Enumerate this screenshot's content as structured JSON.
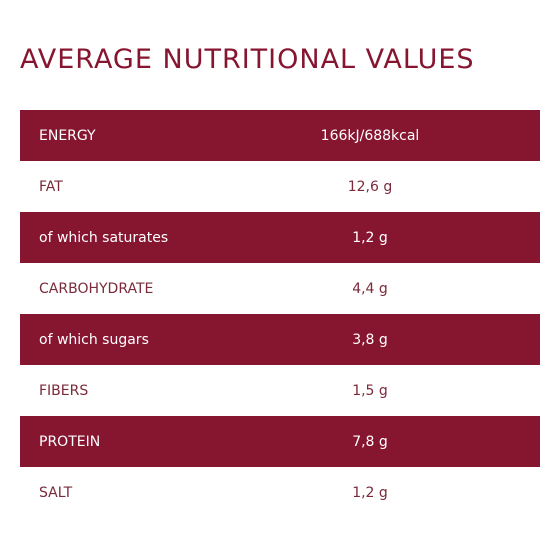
{
  "title": "AVERAGE NUTRITIONAL VALUES",
  "rows": [
    {
      "label": "ENERGY",
      "value": "166kJ/688kcal"
    },
    {
      "label": "FAT",
      "value": "12,6 g"
    },
    {
      "label": "of which saturates",
      "value": "1,2 g"
    },
    {
      "label": "CARBOHYDRATE",
      "value": "4,4 g"
    },
    {
      "label": "of which sugars",
      "value": "3,8 g"
    },
    {
      "label": "FIBERS",
      "value": "1,5 g"
    },
    {
      "label": "PROTEIN",
      "value": "7,8 g"
    },
    {
      "label": "SALT",
      "value": "1,2 g"
    }
  ],
  "colors": {
    "accent": "#861530",
    "light_text": "#7a2a3a",
    "background": "#ffffff"
  }
}
